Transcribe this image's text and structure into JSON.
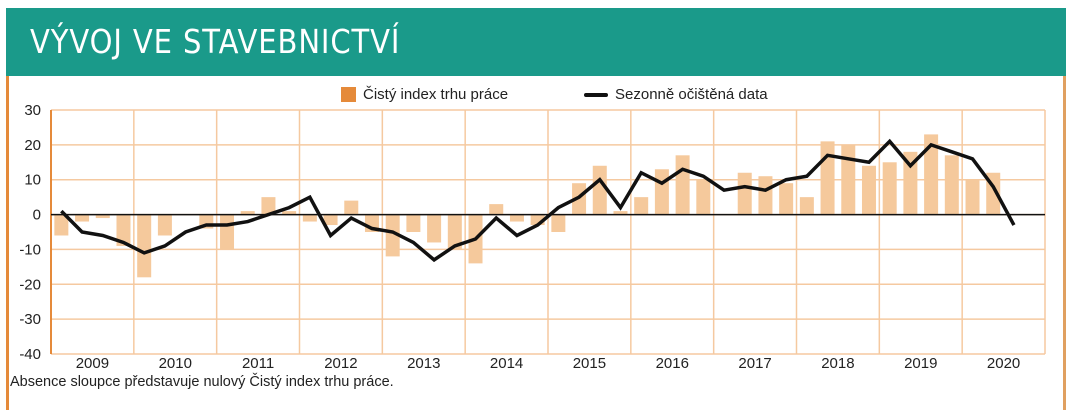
{
  "header": {
    "title": "VÝVOJ VE STAVEBNICTVÍ"
  },
  "footnote": "Absence sloupce představuje nulový Čistý index trhu práce.",
  "colors": {
    "header": "#1a9a8a",
    "bar": "#f5c99c",
    "legend_bar": "#e58a3a",
    "grid": "#f5c9a0",
    "line": "#111111"
  },
  "chart_data": {
    "type": "bar+line",
    "title": "VÝVOJ VE STAVEBNICTVÍ",
    "xlabel": "",
    "ylabel": "",
    "ylim": [
      -40,
      30
    ],
    "yticks": [
      30,
      20,
      10,
      0,
      -10,
      -20,
      -30,
      -40
    ],
    "ytick_labels": [
      "30",
      "20",
      "10",
      "0",
      "-10",
      "-20",
      "-30",
      "-40"
    ],
    "years": [
      "2009",
      "2010",
      "2011",
      "2012",
      "2013",
      "2014",
      "2015",
      "2016",
      "2017",
      "2018",
      "2019",
      "2020"
    ],
    "quarters_per_year": 4,
    "grid": true,
    "legend_placement": "top",
    "series": [
      {
        "name": "Čistý index trhu práce",
        "type": "bar",
        "values": [
          -6,
          -2,
          -1,
          -9,
          -18,
          -6,
          0,
          -4,
          -10,
          1,
          5,
          1,
          -2,
          -3,
          4,
          -5,
          -12,
          -5,
          -8,
          -10,
          -14,
          3,
          -2,
          -3,
          -5,
          9,
          14,
          1,
          5,
          13,
          17,
          10,
          0,
          12,
          11,
          9,
          5,
          21,
          20,
          14,
          15,
          18,
          23,
          17,
          10,
          12,
          0
        ]
      },
      {
        "name": "Sezonně očištěná data",
        "type": "line",
        "values": [
          1,
          -5,
          -6,
          -8,
          -11,
          -9,
          -5,
          -3,
          -3,
          -2,
          0,
          2,
          5,
          -6,
          -1,
          -4,
          -5,
          -8,
          -13,
          -9,
          -7,
          -1,
          -6,
          -3,
          2,
          5,
          10,
          2,
          12,
          9,
          13,
          11,
          7,
          8,
          7,
          10,
          11,
          17,
          16,
          15,
          21,
          14,
          20,
          18,
          16,
          8,
          -3
        ]
      }
    ]
  }
}
